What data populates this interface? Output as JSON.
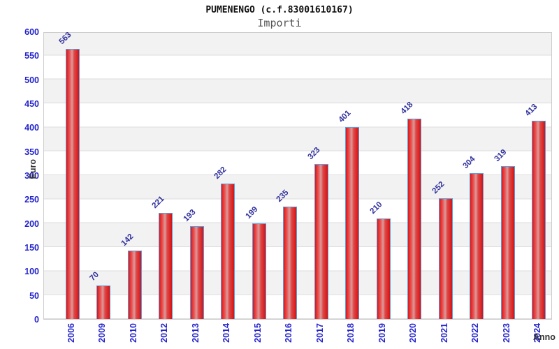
{
  "header": {
    "title": "PUMENENGO (c.f.83001610167)",
    "subtitle": "Importi"
  },
  "chart_data": {
    "type": "bar",
    "title": "PUMENENGO (c.f.83001610167)",
    "subtitle": "Importi",
    "xlabel": "Anno",
    "ylabel": "Euro",
    "categories": [
      "2006",
      "2009",
      "2010",
      "2012",
      "2013",
      "2014",
      "2015",
      "2016",
      "2017",
      "2018",
      "2019",
      "2020",
      "2021",
      "2022",
      "2023",
      "2024"
    ],
    "values": [
      563,
      70,
      142,
      221,
      193,
      282,
      199,
      235,
      323,
      401,
      210,
      418,
      252,
      304,
      319,
      413
    ],
    "ylim": [
      0,
      600
    ],
    "ytick_step": 50,
    "grid": true,
    "legend": "none",
    "band_fill": true,
    "colors": {
      "bar_main": "#e01414",
      "bar_mid1": "#ea5a5a",
      "bar_highlight": "#d89c9c",
      "bar_mid2": "#e04848",
      "bar_edge": "#d51212",
      "bar_border": "#5aa0e0",
      "tick_label": "#2424cc",
      "value_label": "#30309c",
      "axis_title": "#333333",
      "band": "#f2f2f2",
      "grid_line": "#dcdcdc",
      "plot_border": "#cccccc",
      "title_color": "#111111",
      "subtitle_color": "#555555"
    }
  }
}
